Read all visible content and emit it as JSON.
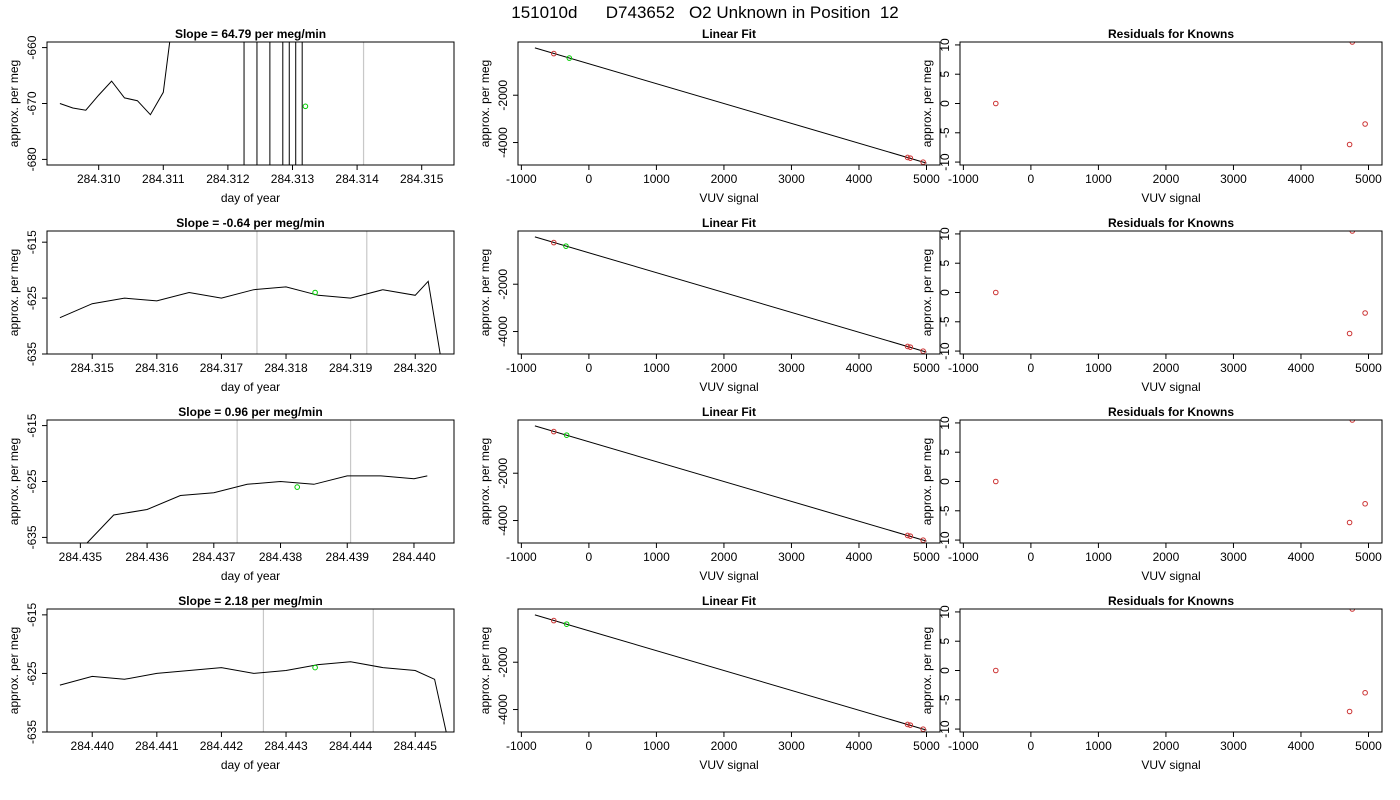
{
  "page_title": "151010d      D743652   O2 Unknown in Position  12",
  "colors": {
    "trace": "#000000",
    "marker_window": "#c8c8c8",
    "green_point": "#00cc00",
    "red_point": "#cc3333",
    "frame": "#000000"
  },
  "chart_data": [
    {
      "type": "line",
      "panel": "time-1",
      "title": "Slope =  64.79  per meg/min",
      "xlabel": "day of year",
      "ylabel": "approx. per meg",
      "xlim": [
        284.3092,
        284.3155
      ],
      "ylim": [
        -681,
        -659
      ],
      "xticks": [
        284.31,
        284.311,
        284.312,
        284.313,
        284.314,
        284.315
      ],
      "xtick_labels": [
        "284.310",
        "284.311",
        "284.312",
        "284.313",
        "284.314",
        "284.315"
      ],
      "yticks": [
        -680,
        -670,
        -660
      ],
      "ytick_labels": [
        "-680",
        "-670",
        "-660"
      ],
      "trace": {
        "x": [
          284.3094,
          284.3096,
          284.3098,
          284.31,
          284.3102,
          284.3104,
          284.3106,
          284.3108,
          284.311,
          284.3111
        ],
        "y": [
          -670.0,
          -670.8,
          -671.2,
          -668.5,
          -666.0,
          -669.0,
          -669.5,
          -672.0,
          -668.0,
          -659.0
        ]
      },
      "window_lines": [
        284.31225,
        284.31245,
        284.31265,
        284.31285,
        284.31295,
        284.31305,
        284.31315
      ],
      "marker_lines": [
        284.3141
      ],
      "green_point": {
        "x": 284.3132,
        "y": -670.5
      }
    },
    {
      "type": "line",
      "panel": "time-2",
      "title": "Slope =  -0.64  per meg/min",
      "xlabel": "day of year",
      "ylabel": "approx. per meg",
      "xlim": [
        284.3143,
        284.3206
      ],
      "ylim": [
        -635,
        -613
      ],
      "xticks": [
        284.315,
        284.316,
        284.317,
        284.318,
        284.319,
        284.32
      ],
      "xtick_labels": [
        "284.315",
        "284.316",
        "284.317",
        "284.318",
        "284.319",
        "284.320"
      ],
      "yticks": [
        -635,
        -625,
        -615
      ],
      "ytick_labels": [
        "-635",
        "-625",
        "-615"
      ],
      "trace": {
        "x": [
          284.3145,
          284.315,
          284.3155,
          284.316,
          284.3165,
          284.317,
          284.3175,
          284.318,
          284.3185,
          284.319,
          284.3195,
          284.32,
          284.3202,
          284.3204
        ],
        "y": [
          -628.5,
          -626.0,
          -625.0,
          -625.5,
          -624.0,
          -625.0,
          -623.5,
          -623.0,
          -624.5,
          -625.0,
          -623.5,
          -624.5,
          -622.0,
          -636.0
        ]
      },
      "marker_lines": [
        284.31755,
        284.31925
      ],
      "green_point": {
        "x": 284.31845,
        "y": -624.0
      }
    },
    {
      "type": "line",
      "panel": "time-3",
      "title": "Slope =  0.96  per meg/min",
      "xlabel": "day of year",
      "ylabel": "approx. per meg",
      "xlim": [
        284.4345,
        284.4406
      ],
      "ylim": [
        -636,
        -614
      ],
      "xticks": [
        284.435,
        284.436,
        284.437,
        284.438,
        284.439,
        284.44
      ],
      "xtick_labels": [
        "284.435",
        "284.436",
        "284.437",
        "284.438",
        "284.439",
        "284.440"
      ],
      "yticks": [
        -635,
        -625,
        -615
      ],
      "ytick_labels": [
        "-635",
        "-625",
        "-615"
      ],
      "trace": {
        "x": [
          284.4351,
          284.4355,
          284.436,
          284.4365,
          284.437,
          284.4375,
          284.438,
          284.4385,
          284.439,
          284.4395,
          284.44,
          284.4402
        ],
        "y": [
          -636.0,
          -631.0,
          -630.0,
          -627.5,
          -627.0,
          -625.5,
          -625.0,
          -625.5,
          -624.0,
          -624.0,
          -624.5,
          -624.0
        ]
      },
      "marker_lines": [
        284.43735,
        284.43905
      ],
      "green_point": {
        "x": 284.43825,
        "y": -626.0
      }
    },
    {
      "type": "line",
      "panel": "time-4",
      "title": "Slope =  2.18  per meg/min",
      "xlabel": "day of year",
      "ylabel": "approx. per meg",
      "xlim": [
        284.4393,
        284.4456
      ],
      "ylim": [
        -635,
        -614
      ],
      "xticks": [
        284.44,
        284.441,
        284.442,
        284.443,
        284.444,
        284.445
      ],
      "xtick_labels": [
        "284.440",
        "284.441",
        "284.442",
        "284.443",
        "284.444",
        "284.445"
      ],
      "yticks": [
        -635,
        -625,
        -615
      ],
      "ytick_labels": [
        "-635",
        "-625",
        "-615"
      ],
      "trace": {
        "x": [
          284.4395,
          284.44,
          284.4405,
          284.441,
          284.4415,
          284.442,
          284.4425,
          284.443,
          284.4435,
          284.444,
          284.4445,
          284.445,
          284.4453,
          284.4455
        ],
        "y": [
          -627.0,
          -625.5,
          -626.0,
          -625.0,
          -624.5,
          -624.0,
          -625.0,
          -624.5,
          -623.5,
          -623.0,
          -624.0,
          -624.5,
          -626.0,
          -636.0
        ]
      },
      "marker_lines": [
        284.44265,
        284.44435
      ],
      "green_point": {
        "x": 284.44345,
        "y": -624.0
      }
    },
    {
      "type": "scatter",
      "panel": "fit-1",
      "title": "Linear Fit",
      "xlabel": "VUV signal",
      "ylabel": "approx. per meg",
      "xlim": [
        -1050,
        5200
      ],
      "ylim": [
        -4950,
        250
      ],
      "xticks": [
        -1000,
        0,
        1000,
        2000,
        3000,
        4000,
        5000
      ],
      "xtick_labels": [
        "-1000",
        "0",
        "1000",
        "2000",
        "3000",
        "4000",
        "5000"
      ],
      "yticks": [
        -4000,
        -2000
      ],
      "ytick_labels": [
        "-4000",
        "-2000"
      ],
      "fit_line": {
        "x": [
          -800,
          5000
        ],
        "y": [
          0,
          -4870
        ]
      },
      "known_points": {
        "x": [
          -520,
          4720,
          4760,
          4950
        ],
        "y": [
          -240,
          -4630,
          -4660,
          -4830
        ]
      },
      "unknown_points": {
        "x": [
          -290
        ],
        "y": [
          -430
        ]
      }
    },
    {
      "type": "scatter",
      "panel": "fit-2",
      "title": "Linear Fit",
      "xlabel": "VUV signal",
      "ylabel": "approx. per meg",
      "xlim": [
        -1050,
        5200
      ],
      "ylim": [
        -4950,
        250
      ],
      "xticks": [
        -1000,
        0,
        1000,
        2000,
        3000,
        4000,
        5000
      ],
      "xtick_labels": [
        "-1000",
        "0",
        "1000",
        "2000",
        "3000",
        "4000",
        "5000"
      ],
      "yticks": [
        -4000,
        -2000
      ],
      "ytick_labels": [
        "-4000",
        "-2000"
      ],
      "fit_line": {
        "x": [
          -800,
          5000
        ],
        "y": [
          0,
          -4870
        ]
      },
      "known_points": {
        "x": [
          -520,
          4720,
          4760,
          4950
        ],
        "y": [
          -240,
          -4630,
          -4660,
          -4830
        ]
      },
      "unknown_points": {
        "x": [
          -340
        ],
        "y": [
          -390
        ]
      }
    },
    {
      "type": "scatter",
      "panel": "fit-3",
      "title": "Linear Fit",
      "xlabel": "VUV signal",
      "ylabel": "approx. per meg",
      "xlim": [
        -1050,
        5200
      ],
      "ylim": [
        -4950,
        250
      ],
      "xticks": [
        -1000,
        0,
        1000,
        2000,
        3000,
        4000,
        5000
      ],
      "xtick_labels": [
        "-1000",
        "0",
        "1000",
        "2000",
        "3000",
        "4000",
        "5000"
      ],
      "yticks": [
        -4000,
        -2000
      ],
      "ytick_labels": [
        "-4000",
        "-2000"
      ],
      "fit_line": {
        "x": [
          -800,
          5000
        ],
        "y": [
          0,
          -4870
        ]
      },
      "known_points": {
        "x": [
          -520,
          4720,
          4760,
          4950
        ],
        "y": [
          -240,
          -4630,
          -4660,
          -4830
        ]
      },
      "unknown_points": {
        "x": [
          -330
        ],
        "y": [
          -390
        ]
      }
    },
    {
      "type": "scatter",
      "panel": "fit-4",
      "title": "Linear Fit",
      "xlabel": "VUV signal",
      "ylabel": "approx. per meg",
      "xlim": [
        -1050,
        5200
      ],
      "ylim": [
        -4950,
        250
      ],
      "xticks": [
        -1000,
        0,
        1000,
        2000,
        3000,
        4000,
        5000
      ],
      "xtick_labels": [
        "-1000",
        "0",
        "1000",
        "2000",
        "3000",
        "4000",
        "5000"
      ],
      "yticks": [
        -4000,
        -2000
      ],
      "ytick_labels": [
        "-4000",
        "-2000"
      ],
      "fit_line": {
        "x": [
          -800,
          5000
        ],
        "y": [
          0,
          -4870
        ]
      },
      "known_points": {
        "x": [
          -520,
          4720,
          4760,
          4950
        ],
        "y": [
          -240,
          -4630,
          -4660,
          -4830
        ]
      },
      "unknown_points": {
        "x": [
          -330
        ],
        "y": [
          -390
        ]
      }
    },
    {
      "type": "scatter",
      "panel": "resid-1",
      "title": "Residuals for Knowns",
      "xlabel": "VUV signal",
      "ylabel": "approx. per meg",
      "xlim": [
        -1050,
        5200
      ],
      "ylim": [
        -10.5,
        10.5
      ],
      "xticks": [
        -1000,
        0,
        1000,
        2000,
        3000,
        4000,
        5000
      ],
      "xtick_labels": [
        "-1000",
        "0",
        "1000",
        "2000",
        "3000",
        "4000",
        "5000"
      ],
      "yticks": [
        -10,
        -5,
        0,
        5,
        10
      ],
      "ytick_labels": [
        "-10",
        "-5",
        "0",
        "5",
        "10"
      ],
      "points": {
        "x": [
          -520,
          4720,
          4760,
          4950
        ],
        "y": [
          0.0,
          -7.0,
          10.5,
          -3.5
        ]
      }
    },
    {
      "type": "scatter",
      "panel": "resid-2",
      "title": "Residuals for Knowns",
      "xlabel": "VUV signal",
      "ylabel": "approx. per meg",
      "xlim": [
        -1050,
        5200
      ],
      "ylim": [
        -10.5,
        10.5
      ],
      "xticks": [
        -1000,
        0,
        1000,
        2000,
        3000,
        4000,
        5000
      ],
      "xtick_labels": [
        "-1000",
        "0",
        "1000",
        "2000",
        "3000",
        "4000",
        "5000"
      ],
      "yticks": [
        -10,
        -5,
        0,
        5,
        10
      ],
      "ytick_labels": [
        "-10",
        "-5",
        "0",
        "5",
        "10"
      ],
      "points": {
        "x": [
          -520,
          4720,
          4760,
          4950
        ],
        "y": [
          0.0,
          -7.0,
          10.5,
          -3.5
        ]
      }
    },
    {
      "type": "scatter",
      "panel": "resid-3",
      "title": "Residuals for Knowns",
      "xlabel": "VUV signal",
      "ylabel": "approx. per meg",
      "xlim": [
        -1050,
        5200
      ],
      "ylim": [
        -10.5,
        10.5
      ],
      "xticks": [
        -1000,
        0,
        1000,
        2000,
        3000,
        4000,
        5000
      ],
      "xtick_labels": [
        "-1000",
        "0",
        "1000",
        "2000",
        "3000",
        "4000",
        "5000"
      ],
      "yticks": [
        -10,
        -5,
        0,
        5,
        10
      ],
      "ytick_labels": [
        "-10",
        "-5",
        "0",
        "5",
        "10"
      ],
      "points": {
        "x": [
          -520,
          4720,
          4760,
          4950
        ],
        "y": [
          0.0,
          -7.0,
          10.5,
          -3.8
        ]
      }
    },
    {
      "type": "scatter",
      "panel": "resid-4",
      "title": "Residuals for Knowns",
      "xlabel": "VUV signal",
      "ylabel": "approx. per meg",
      "xlim": [
        -1050,
        5200
      ],
      "ylim": [
        -10.5,
        10.5
      ],
      "xticks": [
        -1000,
        0,
        1000,
        2000,
        3000,
        4000,
        5000
      ],
      "xtick_labels": [
        "-1000",
        "0",
        "1000",
        "2000",
        "3000",
        "4000",
        "5000"
      ],
      "yticks": [
        -10,
        -5,
        0,
        5,
        10
      ],
      "ytick_labels": [
        "-10",
        "-5",
        "0",
        "5",
        "10"
      ],
      "points": {
        "x": [
          -520,
          4720,
          4760,
          4950
        ],
        "y": [
          0.0,
          -7.0,
          10.5,
          -3.8
        ]
      }
    }
  ]
}
